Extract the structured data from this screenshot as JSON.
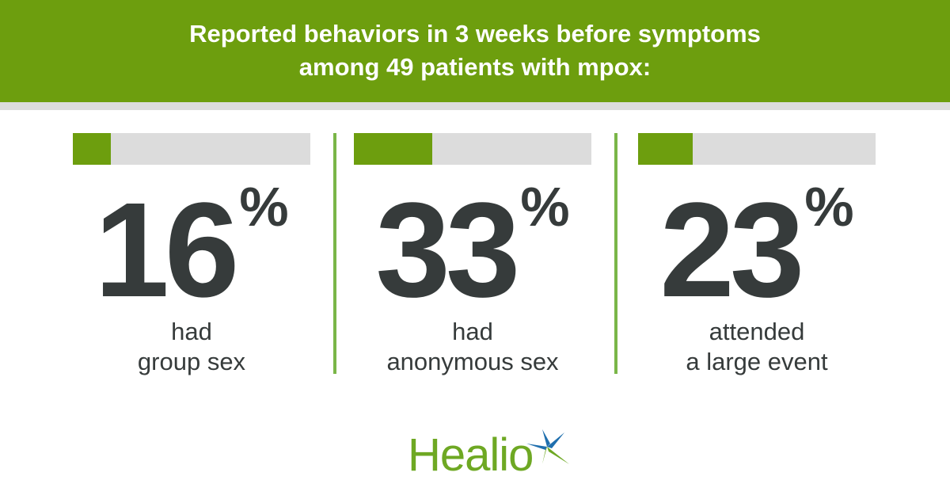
{
  "header": {
    "line1": "Reported behaviors in 3 weeks before symptoms",
    "line2": "among 49 patients with mpox:"
  },
  "colors": {
    "header": "#6d9e0e",
    "bar_fill": "#6d9e0e",
    "bar_track": "#dcdcdc",
    "divider": "#7ab648",
    "number": "#363b3b",
    "logo_green": "#6ea823",
    "logo_blue": "#1f6fae"
  },
  "chart_data": {
    "type": "bar",
    "categories": [
      "had group sex",
      "had anonymous sex",
      "attended a large event"
    ],
    "values": [
      16,
      33,
      23
    ],
    "ylim": [
      0,
      100
    ],
    "items": [
      {
        "value": "16",
        "unit": "%",
        "label1": "had",
        "label2": "group sex"
      },
      {
        "value": "33",
        "unit": "%",
        "label1": "had",
        "label2": "anonymous sex"
      },
      {
        "value": "23",
        "unit": "%",
        "label1": "attended",
        "label2": "a large event"
      }
    ]
  },
  "logo": {
    "text": "Healio",
    "icon": "star-icon"
  }
}
